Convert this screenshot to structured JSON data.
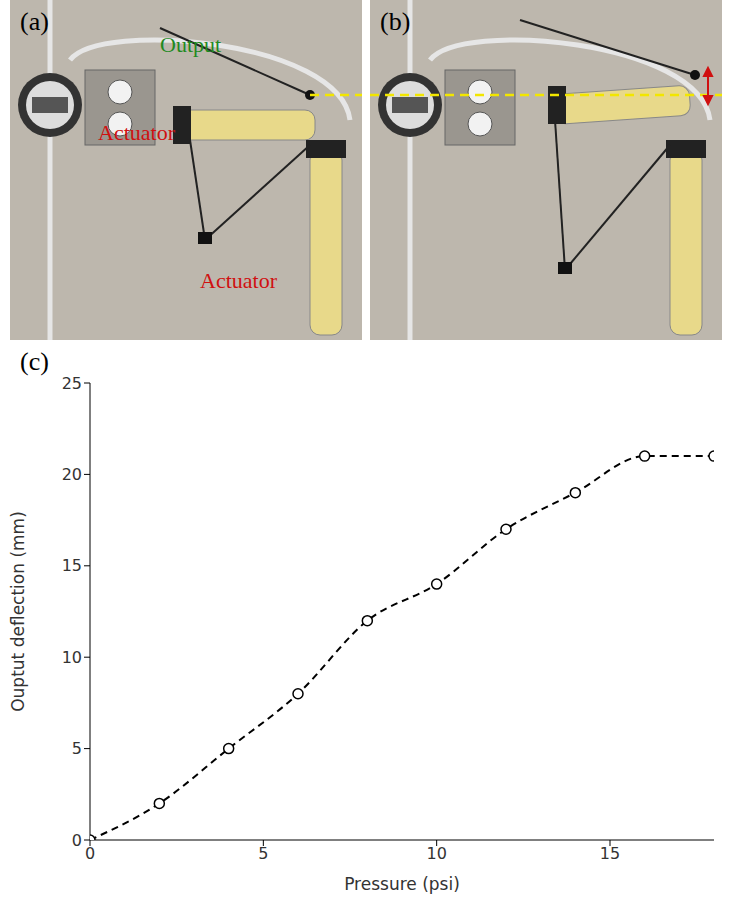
{
  "panels": [
    {
      "label": "(a)",
      "annotations": [
        {
          "text": "Output",
          "color": "#1f8a1f"
        },
        {
          "text": "Actuator",
          "color": "#d01010"
        },
        {
          "text": "Actuator",
          "color": "#d01010"
        }
      ]
    },
    {
      "label": "(b)",
      "annotations": []
    }
  ],
  "chart_data": {
    "type": "line",
    "panel_label": "(c)",
    "x_label": "Pressure (psi)",
    "y_label": "Ouptut deflection (mm)",
    "x": [
      0,
      2,
      4,
      6,
      8,
      10,
      12,
      14,
      16,
      18
    ],
    "values": [
      0,
      2,
      5,
      8,
      12,
      14,
      17,
      19,
      21,
      21
    ],
    "color": "#000000",
    "marker": "circle",
    "line_style": "dashed",
    "xlim": [
      0,
      18
    ],
    "xticks": [
      0,
      5,
      10,
      15
    ],
    "ylim": [
      0,
      25
    ],
    "yticks": [
      0,
      5,
      10,
      15,
      20,
      25
    ],
    "grid": false
  }
}
